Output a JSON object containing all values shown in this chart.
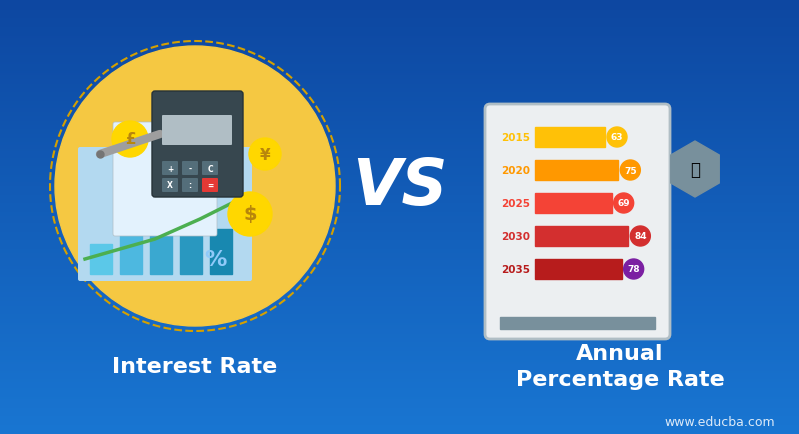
{
  "title_left": "Interest Rate",
  "title_right": "Annual\nPercentage Rate",
  "vs_text": "VS",
  "watermark": "www.educba.com",
  "bg_color_left": "#1565C0",
  "bg_color_right": "#0D47A1",
  "bg_gradient_top": "#1976D2",
  "bg_gradient_bottom": "#0D47A1",
  "title_color": "#FFFFFF",
  "vs_color": "#FFFFFF",
  "bar_years": [
    "2015",
    "2020",
    "2025",
    "2030",
    "2035"
  ],
  "bar_values": [
    63,
    75,
    69,
    84,
    78
  ],
  "bar_colors": [
    "#FFC107",
    "#FF9800",
    "#F44336",
    "#D32F2F",
    "#B71C1C"
  ],
  "bar_label_colors": [
    "#FFC107",
    "#FF9800",
    "#F44336",
    "#D32F2F",
    "#B71C1C"
  ],
  "circle_colors": [
    "#FFC107",
    "#FF9800",
    "#F44336",
    "#D32F2F",
    "#7B1FA2"
  ]
}
